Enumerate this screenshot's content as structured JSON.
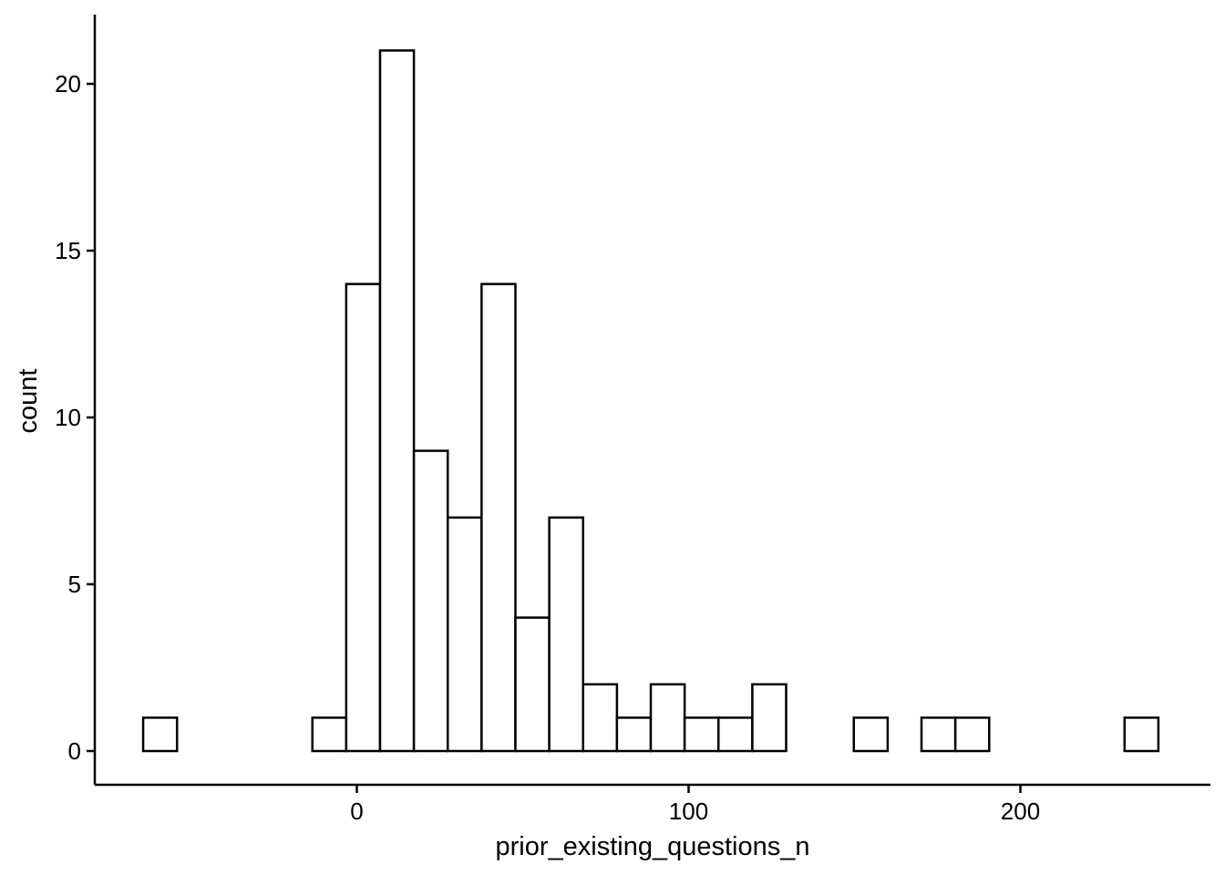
{
  "chart_data": {
    "type": "bar",
    "subtype": "histogram",
    "xlabel": "prior_existing_questions_n",
    "ylabel": "count",
    "bin_width": 10.2,
    "bins": [
      {
        "x0": -64.4,
        "x1": -54.2,
        "count": 1
      },
      {
        "x0": -54.2,
        "x1": -44.0,
        "count": 0
      },
      {
        "x0": -44.0,
        "x1": -33.8,
        "count": 0
      },
      {
        "x0": -33.8,
        "x1": -23.6,
        "count": 0
      },
      {
        "x0": -23.6,
        "x1": -13.4,
        "count": 0
      },
      {
        "x0": -13.4,
        "x1": -3.2,
        "count": 1
      },
      {
        "x0": -3.2,
        "x1": 7.0,
        "count": 14
      },
      {
        "x0": 7.0,
        "x1": 17.2,
        "count": 21
      },
      {
        "x0": 17.2,
        "x1": 27.4,
        "count": 9
      },
      {
        "x0": 27.4,
        "x1": 37.6,
        "count": 7
      },
      {
        "x0": 37.6,
        "x1": 47.8,
        "count": 14
      },
      {
        "x0": 47.8,
        "x1": 58.0,
        "count": 4
      },
      {
        "x0": 58.0,
        "x1": 68.2,
        "count": 7
      },
      {
        "x0": 68.2,
        "x1": 78.4,
        "count": 2
      },
      {
        "x0": 78.4,
        "x1": 88.6,
        "count": 1
      },
      {
        "x0": 88.6,
        "x1": 98.8,
        "count": 2
      },
      {
        "x0": 98.8,
        "x1": 109.0,
        "count": 1
      },
      {
        "x0": 109.0,
        "x1": 119.2,
        "count": 1
      },
      {
        "x0": 119.2,
        "x1": 129.4,
        "count": 2
      },
      {
        "x0": 129.4,
        "x1": 139.6,
        "count": 0
      },
      {
        "x0": 139.6,
        "x1": 149.8,
        "count": 0
      },
      {
        "x0": 149.8,
        "x1": 160.0,
        "count": 1
      },
      {
        "x0": 160.0,
        "x1": 170.2,
        "count": 0
      },
      {
        "x0": 170.2,
        "x1": 180.4,
        "count": 1
      },
      {
        "x0": 180.4,
        "x1": 190.6,
        "count": 1
      },
      {
        "x0": 190.6,
        "x1": 200.8,
        "count": 0
      },
      {
        "x0": 200.8,
        "x1": 211.0,
        "count": 0
      },
      {
        "x0": 211.0,
        "x1": 221.2,
        "count": 0
      },
      {
        "x0": 221.2,
        "x1": 231.4,
        "count": 0
      },
      {
        "x0": 231.4,
        "x1": 241.6,
        "count": 1
      }
    ],
    "x_ticks": [
      0,
      100,
      200
    ],
    "y_ticks": [
      0,
      5,
      10,
      15,
      20
    ],
    "xlim": [
      -70,
      250
    ],
    "ylim": [
      -1.0,
      22
    ],
    "grid": false,
    "legend": "none",
    "colors": {
      "bar_fill": "#ffffff",
      "bar_stroke": "#000000",
      "axis": "#000000"
    }
  }
}
